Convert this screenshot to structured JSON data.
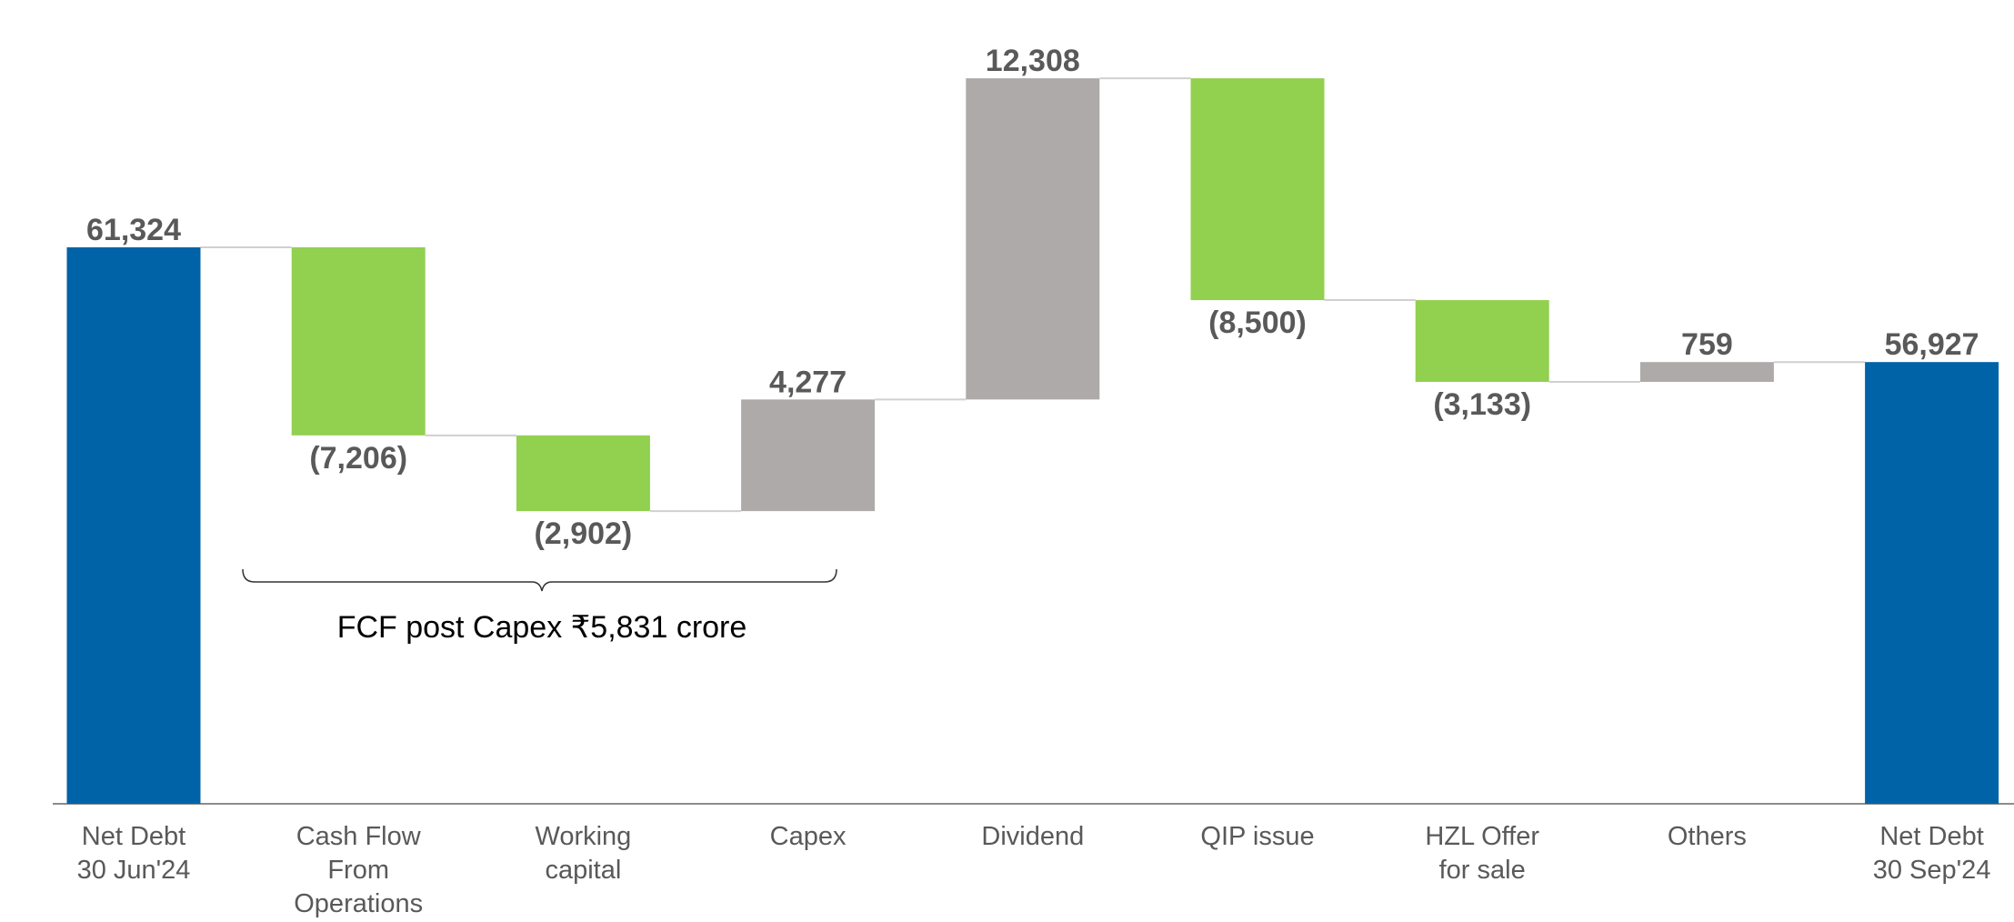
{
  "chart_data": {
    "type": "waterfall",
    "categories": [
      "Net Debt\n30 Jun'24",
      "Cash Flow\nFrom\nOperations",
      "Working\ncapital",
      "Capex",
      "Dividend",
      "QIP issue",
      "HZL Offer\nfor sale",
      "Others",
      "Net Debt\n30 Sep'24"
    ],
    "values": [
      61324,
      -7206,
      -2902,
      4277,
      12308,
      -8500,
      -3133,
      759,
      56927
    ],
    "value_labels": [
      "61,324",
      "(7,206)",
      "(2,902)",
      "4,277",
      "12,308",
      "(8,500)",
      "(3,133)",
      "759",
      "56,927"
    ],
    "measure": [
      "absolute",
      "relative",
      "relative",
      "relative",
      "relative",
      "relative",
      "relative",
      "relative",
      "absolute"
    ],
    "colors": [
      "#0063a8",
      "#92d050",
      "#92d050",
      "#aeaaaa",
      "#aeaaaa",
      "#92d050",
      "#92d050",
      "#aeaaaa",
      "#0063a8"
    ],
    "ylim": [
      40000,
      70000
    ],
    "annotation": "FCF post Capex  ₹5,831 crore"
  }
}
